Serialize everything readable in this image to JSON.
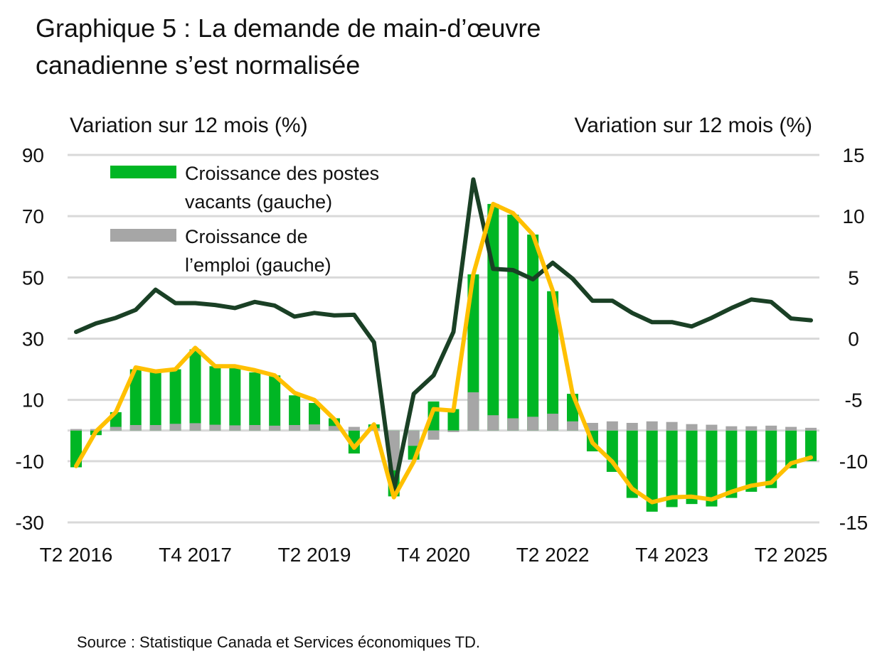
{
  "title_lines": [
    "Graphique 5 : La demande de main-d’œuvre",
    "canadienne s’est normalisée"
  ],
  "source": "Source : Statistique Canada et Services économiques TD.",
  "colors": {
    "vacancies": "#00b624",
    "employment": "#a6a6a6",
    "dark_line": "#1a4025",
    "yellow_line": "#ffc000",
    "grid": "#d9d9d9"
  },
  "chart_data": {
    "type": "bar",
    "ylabel_left": "Variation sur 12 mois (%)",
    "ylabel_right": "Variation sur 12 mois (%)",
    "ylim_left": [
      -30,
      90
    ],
    "ylim_right": [
      -15,
      15
    ],
    "yticks_left": [
      "90",
      "70",
      "50",
      "30",
      "10",
      "-10",
      "-30"
    ],
    "yticks_right": [
      "15",
      "10",
      "5",
      "0",
      "-5",
      "-10",
      "-15"
    ],
    "grid": true,
    "legend_position": "top-left",
    "categories": [
      "T2 2016",
      "T3 2016",
      "T4 2016",
      "T1 2017",
      "T2 2017",
      "T3 2017",
      "T4 2017",
      "T1 2018",
      "T2 2018",
      "T3 2018",
      "T4 2018",
      "T1 2019",
      "T2 2019",
      "T3 2019",
      "T4 2019",
      "T1 2020",
      "T2 2020",
      "T3 2020",
      "T4 2020",
      "T1 2021",
      "T2 2021",
      "T3 2021",
      "T4 2021",
      "T1 2022",
      "T2 2022",
      "T3 2022",
      "T4 2022",
      "T1 2023",
      "T2 2023",
      "T3 2023",
      "T4 2023",
      "T1 2024",
      "T2 2024",
      "T3 2024",
      "T4 2024",
      "T1 2025",
      "T2 2025",
      "T3 2025"
    ],
    "xtick_labels": [
      "T2 2016",
      "T4 2017",
      "T2 2019",
      "T4 2020",
      "T2 2022",
      "T4 2023",
      "T2 2025"
    ],
    "series": [
      {
        "name": "Croissance des postes vacants (gauche)",
        "type": "bar",
        "axis": "left",
        "values": [
          -12,
          -1.5,
          6,
          20,
          19,
          20,
          26.5,
          21,
          21,
          19,
          18,
          11.5,
          9,
          4,
          -7.5,
          2,
          -21.5,
          -9.5,
          9.5,
          7,
          51,
          74,
          70.5,
          64,
          45.5,
          12,
          -6.8,
          -13.5,
          -22,
          -26.5,
          -25,
          -24,
          -24.8,
          -22,
          -20,
          -18.8,
          -12.3,
          -10
        ]
      },
      {
        "name": "Croissance de l’emploi (gauche)",
        "type": "bar",
        "axis": "left",
        "values": [
          0.5,
          0.5,
          1.2,
          1.8,
          1.8,
          2.2,
          2.4,
          1.9,
          1.7,
          1.8,
          1.6,
          1.8,
          2,
          1.5,
          1.2,
          0.8,
          -13,
          -5,
          -3,
          -0.5,
          12.5,
          5,
          4,
          4.5,
          5.5,
          3,
          2.5,
          3,
          2.5,
          3,
          2.8,
          2.1,
          1.9,
          1.4,
          1.4,
          1.6,
          1.2,
          0.9
        ]
      },
      {
        "type": "line",
        "axis": "right",
        "color": "dark",
        "values": [
          0.55,
          1.25,
          1.7,
          2.35,
          4.0,
          2.9,
          2.9,
          2.75,
          2.5,
          3.0,
          2.7,
          1.8,
          2.1,
          1.9,
          1.95,
          -0.3,
          -12.4,
          -4.5,
          -3.0,
          0.55,
          13.0,
          5.7,
          5.6,
          4.85,
          6.2,
          4.9,
          3.1,
          3.1,
          2.1,
          1.35,
          1.35,
          1.0,
          1.7,
          2.5,
          3.2,
          3.0,
          1.65,
          1.5
        ]
      },
      {
        "type": "line",
        "axis": "left",
        "color": "yellow",
        "values": [
          -11.6,
          -0.3,
          6,
          20.6,
          19.3,
          20,
          27,
          21,
          21,
          19.7,
          18,
          12.3,
          10,
          3.7,
          -5.6,
          2,
          -21.8,
          -10.2,
          7,
          6.5,
          51,
          74,
          71,
          64,
          45.7,
          12,
          -4,
          -10.2,
          -19,
          -23.4,
          -21.8,
          -21.6,
          -22.5,
          -20,
          -18,
          -17,
          -10.7,
          -8.8
        ]
      }
    ]
  }
}
